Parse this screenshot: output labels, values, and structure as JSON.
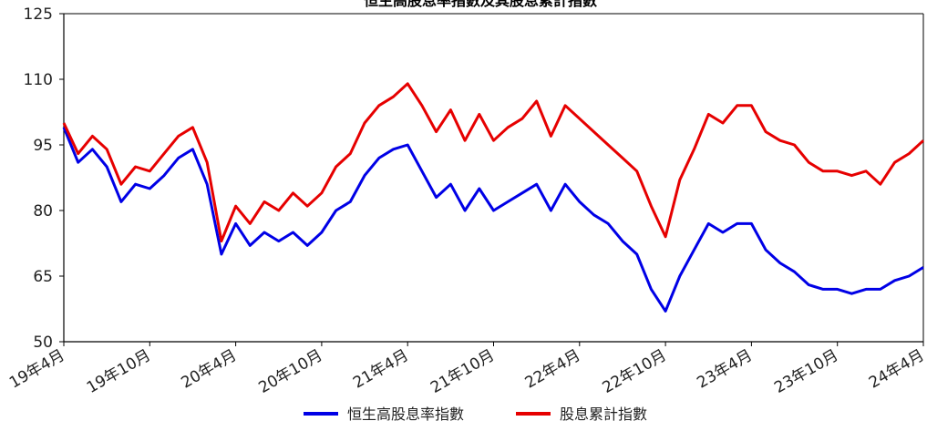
{
  "chart_data": {
    "type": "line",
    "title": "恒生高股息率指數及其股息累計指數",
    "xlabel": "",
    "ylabel": "",
    "ylim": [
      50,
      125
    ],
    "yticks": [
      50,
      65,
      80,
      95,
      110,
      125
    ],
    "x_tick_labels": [
      "19年4月",
      "19年10月",
      "20年4月",
      "20年10月",
      "21年4月",
      "21年10月",
      "22年4月",
      "22年10月",
      "23年4月",
      "23年10月",
      "24年4月"
    ],
    "grid": false,
    "legend": "bottom",
    "x": [
      "2019-04",
      "2019-05",
      "2019-06",
      "2019-07",
      "2019-08",
      "2019-09",
      "2019-10",
      "2019-11",
      "2019-12",
      "2020-01",
      "2020-02",
      "2020-03",
      "2020-04",
      "2020-05",
      "2020-06",
      "2020-07",
      "2020-08",
      "2020-09",
      "2020-10",
      "2020-11",
      "2020-12",
      "2021-01",
      "2021-02",
      "2021-03",
      "2021-04",
      "2021-05",
      "2021-06",
      "2021-07",
      "2021-08",
      "2021-09",
      "2021-10",
      "2021-11",
      "2021-12",
      "2022-01",
      "2022-02",
      "2022-03",
      "2022-04",
      "2022-05",
      "2022-06",
      "2022-07",
      "2022-08",
      "2022-09",
      "2022-10",
      "2022-11",
      "2022-12",
      "2023-01",
      "2023-02",
      "2023-03",
      "2023-04",
      "2023-05",
      "2023-06",
      "2023-07",
      "2023-08",
      "2023-09",
      "2023-10",
      "2023-11",
      "2023-12",
      "2024-01",
      "2024-02",
      "2024-03",
      "2024-04"
    ],
    "series": [
      {
        "name": "恒生高股息率指數",
        "color": "#0000e6",
        "values": [
          99,
          91,
          94,
          90,
          82,
          86,
          85,
          88,
          92,
          94,
          86,
          70,
          77,
          72,
          75,
          73,
          75,
          72,
          75,
          80,
          82,
          88,
          92,
          94,
          95,
          89,
          83,
          86,
          80,
          85,
          80,
          82,
          84,
          86,
          80,
          86,
          82,
          79,
          77,
          73,
          70,
          62,
          57,
          65,
          71,
          77,
          75,
          77,
          77,
          71,
          68,
          66,
          63,
          62,
          62,
          61,
          62,
          62,
          64,
          65,
          67
        ]
      },
      {
        "name": "股息累計指數",
        "color": "#e60000",
        "values": [
          100,
          93,
          97,
          94,
          86,
          90,
          89,
          93,
          97,
          99,
          91,
          73,
          81,
          77,
          82,
          80,
          84,
          81,
          84,
          90,
          93,
          100,
          104,
          106,
          109,
          104,
          98,
          103,
          96,
          102,
          96,
          99,
          101,
          105,
          97,
          104,
          101,
          98,
          95,
          92,
          89,
          81,
          74,
          87,
          94,
          102,
          100,
          104,
          104,
          98,
          96,
          95,
          91,
          89,
          89,
          88,
          89,
          86,
          91,
          93,
          96
        ]
      }
    ]
  }
}
